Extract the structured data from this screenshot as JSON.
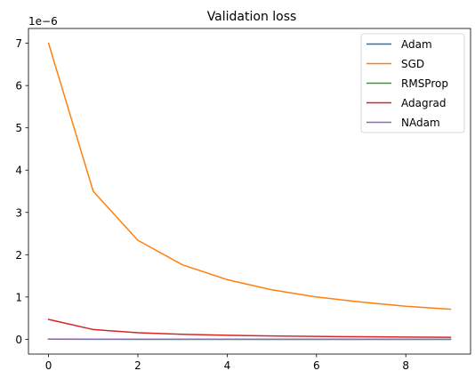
{
  "chart_data": {
    "type": "line",
    "title": "Validation loss",
    "xlabel": "",
    "ylabel": "",
    "offset_label": "1e−6",
    "x": [
      0,
      1,
      2,
      3,
      4,
      5,
      6,
      7,
      8,
      9
    ],
    "xlim": [
      -0.45,
      9.45
    ],
    "ylim": [
      -0.35,
      7.35
    ],
    "scale": 1e-06,
    "xticks": [
      0,
      2,
      4,
      6,
      8
    ],
    "xtick_labels": [
      "0",
      "2",
      "4",
      "6",
      "8"
    ],
    "yticks": [
      0,
      1,
      2,
      3,
      4,
      5,
      6,
      7
    ],
    "ytick_labels": [
      "0",
      "1",
      "2",
      "3",
      "4",
      "5",
      "6",
      "7"
    ],
    "grid": false,
    "legend_position": "top-right",
    "series": [
      {
        "name": "Adam",
        "color": "#1f77b4",
        "values": [
          0.002,
          0.001,
          0.001,
          0.001,
          0.001,
          0.001,
          0.001,
          0.001,
          0.001,
          0.001
        ]
      },
      {
        "name": "SGD",
        "color": "#ff7f0e",
        "values": [
          7.0,
          3.5,
          2.34,
          1.76,
          1.41,
          1.17,
          1.0,
          0.88,
          0.78,
          0.71
        ]
      },
      {
        "name": "RMSProp",
        "color": "#2ca02c",
        "values": [
          0.003,
          0.002,
          0.001,
          0.001,
          0.001,
          0.001,
          0.001,
          0.001,
          0.001,
          0.001
        ]
      },
      {
        "name": "Adagrad",
        "color": "#d62728",
        "values": [
          0.47,
          0.23,
          0.155,
          0.118,
          0.094,
          0.078,
          0.067,
          0.059,
          0.052,
          0.047
        ]
      },
      {
        "name": "NAdam",
        "color": "#9467bd",
        "values": [
          0.005,
          0.003,
          0.002,
          0.002,
          0.002,
          0.001,
          0.001,
          0.001,
          0.001,
          0.001
        ]
      }
    ]
  }
}
